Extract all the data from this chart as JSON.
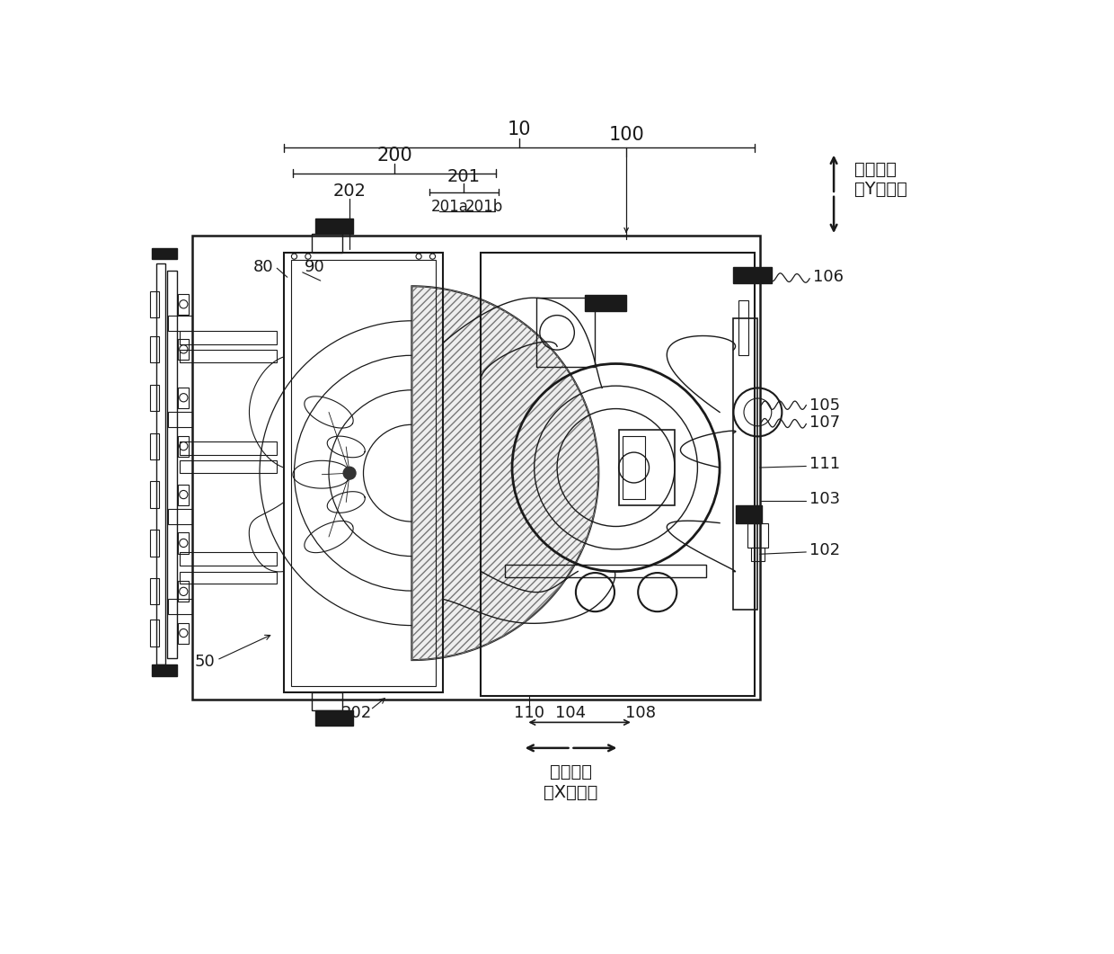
{
  "bg_color": "#ffffff",
  "lc": "#1a1a1a",
  "fig_width": 12.4,
  "fig_height": 10.61,
  "Y_axis_text1": "水平纵向",
  "Y_axis_text2": "（Y轴向）",
  "X_axis_text1": "水平横向",
  "X_axis_text2": "（X轴向）"
}
